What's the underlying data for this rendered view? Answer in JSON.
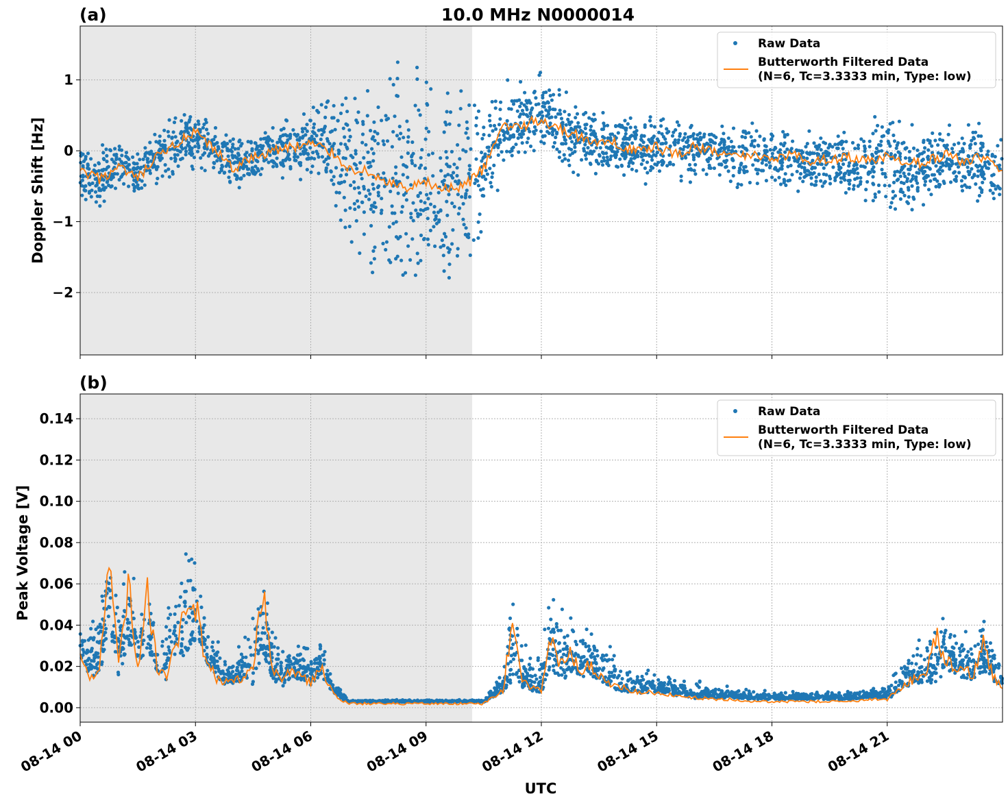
{
  "figure": {
    "title": "10.0 MHz N0000014",
    "xlabel": "UTC"
  },
  "colors": {
    "raw": "#1f77b4",
    "filtered": "#ff7f0e",
    "night_shade": "#e8e8e8",
    "grid": "#b0b0b0"
  },
  "legend": {
    "raw_label": "Raw Data",
    "filtered_line1": "Butterworth Filtered Data",
    "filtered_line2": "(N=6, Tc=3.3333 min, Type: low)"
  },
  "chart_data": [
    {
      "type": "scatter",
      "panel_label": "(a)",
      "ylabel": "Doppler Shift [Hz]",
      "x_unit": "hours UTC since 08-14 00",
      "xlim": [
        0,
        24
      ],
      "ylim": [
        -2.88,
        1.76
      ],
      "yticks": [
        {
          "value": 1,
          "label": "1"
        },
        {
          "value": 0,
          "label": "0"
        },
        {
          "value": -1,
          "label": "−1"
        },
        {
          "value": -2,
          "label": "−2"
        }
      ],
      "shaded_span_hours": [
        0,
        10.2
      ],
      "grid": true,
      "legend_position": "upper-right",
      "series": [
        {
          "name": "Raw Data",
          "style": "points",
          "x": [
            0,
            0.5,
            1,
            1.5,
            2,
            2.5,
            3,
            3.5,
            4,
            4.5,
            5,
            5.5,
            6,
            6.5,
            7,
            7.5,
            8,
            8.5,
            9,
            9.5,
            10,
            10.5,
            11,
            11.5,
            12,
            12.5,
            13,
            13.5,
            14,
            14.5,
            15,
            15.5,
            16,
            16.5,
            17,
            17.5,
            18,
            18.5,
            19,
            19.5,
            20,
            20.5,
            21,
            21.5,
            22,
            22.5,
            23,
            23.5,
            24
          ],
          "y": [
            -0.3,
            -0.4,
            -0.2,
            -0.35,
            -0.1,
            0.1,
            0.2,
            0.0,
            -0.2,
            -0.1,
            0.0,
            0.05,
            0.1,
            0.0,
            -0.2,
            -0.4,
            -0.5,
            -0.6,
            -0.4,
            -0.6,
            -0.5,
            -0.2,
            0.3,
            0.4,
            0.5,
            0.3,
            0.2,
            0.1,
            0.1,
            0.0,
            0.05,
            0.0,
            0.05,
            0.0,
            -0.1,
            -0.05,
            -0.1,
            -0.1,
            -0.15,
            -0.1,
            -0.2,
            -0.15,
            -0.1,
            -0.3,
            -0.2,
            -0.1,
            -0.2,
            -0.2,
            -0.3
          ],
          "spread": [
            0.35,
            0.35,
            0.35,
            0.3,
            0.3,
            0.35,
            0.35,
            0.3,
            0.3,
            0.3,
            0.3,
            0.35,
            0.4,
            0.6,
            0.9,
            1.1,
            1.3,
            1.3,
            1.3,
            1.2,
            1.2,
            0.7,
            0.5,
            0.45,
            0.45,
            0.4,
            0.4,
            0.35,
            0.35,
            0.35,
            0.35,
            0.35,
            0.35,
            0.35,
            0.35,
            0.35,
            0.35,
            0.35,
            0.35,
            0.35,
            0.35,
            0.4,
            0.6,
            0.5,
            0.45,
            0.45,
            0.45,
            0.45,
            0.45
          ]
        },
        {
          "name": "Butterworth Filtered Data",
          "style": "line",
          "x": [
            0,
            0.5,
            1,
            1.5,
            2,
            2.5,
            3,
            3.5,
            4,
            4.5,
            5,
            5.5,
            6,
            6.5,
            7,
            7.5,
            8,
            8.5,
            9,
            9.5,
            10,
            10.5,
            11,
            11.5,
            12,
            12.5,
            13,
            13.5,
            14,
            14.5,
            15,
            15.5,
            16,
            16.5,
            17,
            17.5,
            18,
            18.5,
            19,
            19.5,
            20,
            20.5,
            21,
            21.5,
            22,
            22.5,
            23,
            23.5,
            24
          ],
          "y": [
            -0.3,
            -0.4,
            -0.25,
            -0.4,
            -0.1,
            0.1,
            0.25,
            0.0,
            -0.25,
            -0.1,
            0.0,
            0.05,
            0.1,
            0.0,
            -0.25,
            -0.3,
            -0.45,
            -0.55,
            -0.45,
            -0.55,
            -0.5,
            -0.25,
            0.35,
            0.35,
            0.45,
            0.3,
            0.2,
            0.1,
            0.1,
            0.0,
            0.05,
            -0.05,
            0.05,
            0.0,
            -0.1,
            -0.05,
            -0.1,
            -0.05,
            -0.15,
            -0.1,
            -0.1,
            -0.15,
            -0.1,
            -0.2,
            -0.15,
            -0.05,
            -0.15,
            -0.1,
            -0.25
          ]
        }
      ]
    },
    {
      "type": "scatter",
      "panel_label": "(b)",
      "ylabel": "Peak Voltage [V]",
      "x_unit": "hours UTC since 08-14 00",
      "xlim": [
        0,
        24
      ],
      "ylim": [
        -0.007,
        0.152
      ],
      "yticks": [
        {
          "value": 0.14,
          "label": "0.14"
        },
        {
          "value": 0.12,
          "label": "0.12"
        },
        {
          "value": 0.1,
          "label": "0.10"
        },
        {
          "value": 0.08,
          "label": "0.08"
        },
        {
          "value": 0.06,
          "label": "0.06"
        },
        {
          "value": 0.04,
          "label": "0.04"
        },
        {
          "value": 0.02,
          "label": "0.02"
        },
        {
          "value": 0.0,
          "label": "0.00"
        }
      ],
      "xticks": [
        {
          "value": 0,
          "label": "08-14 00"
        },
        {
          "value": 3,
          "label": "08-14 03"
        },
        {
          "value": 6,
          "label": "08-14 06"
        },
        {
          "value": 9,
          "label": "08-14 09"
        },
        {
          "value": 12,
          "label": "08-14 12"
        },
        {
          "value": 15,
          "label": "08-14 15"
        },
        {
          "value": 18,
          "label": "08-14 18"
        },
        {
          "value": 21,
          "label": "08-14 21"
        }
      ],
      "shaded_span_hours": [
        0,
        10.2
      ],
      "grid": true,
      "legend_position": "upper-right",
      "series": [
        {
          "name": "Raw Data",
          "style": "points",
          "x": [
            0,
            0.25,
            0.5,
            0.75,
            1,
            1.25,
            1.5,
            1.75,
            2,
            2.25,
            2.5,
            2.75,
            3,
            3.25,
            3.5,
            3.75,
            4,
            4.25,
            4.5,
            4.75,
            5,
            5.25,
            5.5,
            5.75,
            6,
            6.25,
            6.5,
            6.75,
            7,
            7.5,
            8,
            8.5,
            9,
            9.5,
            10,
            10.5,
            11,
            11.25,
            11.5,
            11.75,
            12,
            12.25,
            12.5,
            12.75,
            13,
            13.25,
            13.5,
            13.75,
            14,
            14.5,
            15,
            15.5,
            16,
            16.5,
            17,
            17.5,
            18,
            18.5,
            19,
            19.5,
            20,
            20.5,
            21,
            21.25,
            21.5,
            21.75,
            22,
            22.25,
            22.5,
            22.75,
            23,
            23.25,
            23.5,
            23.75,
            24
          ],
          "y": [
            0.03,
            0.02,
            0.025,
            0.05,
            0.025,
            0.04,
            0.03,
            0.035,
            0.025,
            0.02,
            0.035,
            0.04,
            0.045,
            0.03,
            0.02,
            0.015,
            0.015,
            0.018,
            0.02,
            0.04,
            0.02,
            0.015,
            0.02,
            0.018,
            0.015,
            0.02,
            0.012,
            0.006,
            0.003,
            0.003,
            0.003,
            0.003,
            0.003,
            0.003,
            0.003,
            0.003,
            0.01,
            0.025,
            0.015,
            0.012,
            0.012,
            0.03,
            0.02,
            0.025,
            0.02,
            0.022,
            0.018,
            0.015,
            0.012,
            0.01,
            0.01,
            0.008,
            0.007,
            0.006,
            0.006,
            0.005,
            0.005,
            0.005,
            0.005,
            0.005,
            0.005,
            0.006,
            0.006,
            0.01,
            0.014,
            0.016,
            0.018,
            0.02,
            0.025,
            0.022,
            0.02,
            0.018,
            0.025,
            0.018,
            0.012
          ],
          "spread": [
            0.02,
            0.02,
            0.04,
            0.04,
            0.04,
            0.04,
            0.03,
            0.035,
            0.03,
            0.03,
            0.05,
            0.06,
            0.05,
            0.03,
            0.015,
            0.015,
            0.015,
            0.018,
            0.04,
            0.05,
            0.025,
            0.02,
            0.02,
            0.02,
            0.02,
            0.018,
            0.012,
            0.005,
            0.001,
            0.001,
            0.001,
            0.001,
            0.001,
            0.001,
            0.001,
            0.001,
            0.01,
            0.05,
            0.02,
            0.015,
            0.02,
            0.04,
            0.035,
            0.03,
            0.025,
            0.025,
            0.02,
            0.018,
            0.015,
            0.012,
            0.01,
            0.008,
            0.01,
            0.005,
            0.005,
            0.004,
            0.004,
            0.004,
            0.004,
            0.004,
            0.004,
            0.004,
            0.006,
            0.015,
            0.015,
            0.02,
            0.02,
            0.035,
            0.03,
            0.025,
            0.025,
            0.02,
            0.03,
            0.02,
            0.012
          ]
        },
        {
          "name": "Butterworth Filtered Data",
          "style": "line",
          "x": [
            0,
            0.25,
            0.5,
            0.75,
            1,
            1.25,
            1.5,
            1.75,
            2,
            2.25,
            2.5,
            2.75,
            3,
            3.25,
            3.5,
            3.75,
            4,
            4.25,
            4.5,
            4.75,
            5,
            5.25,
            5.5,
            5.75,
            6,
            6.25,
            6.5,
            6.75,
            7,
            7.5,
            8,
            8.5,
            9,
            9.5,
            10,
            10.5,
            11,
            11.25,
            11.5,
            11.75,
            12,
            12.25,
            12.5,
            12.75,
            13,
            13.25,
            13.5,
            13.75,
            14,
            14.5,
            15,
            15.5,
            16,
            16.5,
            17,
            17.5,
            18,
            18.5,
            19,
            19.5,
            20,
            20.5,
            21,
            21.25,
            21.5,
            21.75,
            22,
            22.25,
            22.5,
            22.75,
            23,
            23.25,
            23.5,
            23.75,
            24
          ],
          "y": [
            0.025,
            0.012,
            0.02,
            0.07,
            0.02,
            0.06,
            0.02,
            0.055,
            0.02,
            0.015,
            0.03,
            0.05,
            0.05,
            0.025,
            0.015,
            0.012,
            0.012,
            0.015,
            0.02,
            0.055,
            0.02,
            0.012,
            0.02,
            0.015,
            0.012,
            0.02,
            0.01,
            0.004,
            0.002,
            0.002,
            0.002,
            0.002,
            0.002,
            0.002,
            0.002,
            0.002,
            0.008,
            0.045,
            0.012,
            0.01,
            0.008,
            0.035,
            0.02,
            0.025,
            0.018,
            0.02,
            0.015,
            0.012,
            0.01,
            0.008,
            0.007,
            0.006,
            0.005,
            0.004,
            0.004,
            0.003,
            0.003,
            0.003,
            0.003,
            0.003,
            0.003,
            0.004,
            0.004,
            0.008,
            0.012,
            0.014,
            0.016,
            0.035,
            0.025,
            0.02,
            0.02,
            0.016,
            0.03,
            0.015,
            0.01
          ]
        }
      ]
    }
  ]
}
